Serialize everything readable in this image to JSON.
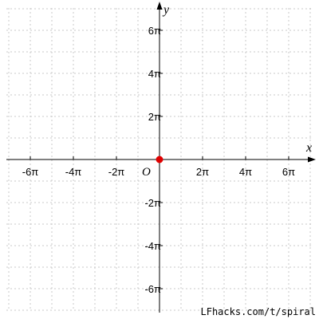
{
  "chart_data": {
    "type": "scatter",
    "xlabel": "x",
    "ylabel": "y",
    "origin_label": "O",
    "xlim_pi": [
      -6.9,
      6.9
    ],
    "ylim_pi": [
      -6.9,
      6.9
    ],
    "grid": true,
    "x_ticks": [
      {
        "value_pi": -6,
        "label": "-6π"
      },
      {
        "value_pi": -4,
        "label": "-4π"
      },
      {
        "value_pi": -2,
        "label": "-2π"
      },
      {
        "value_pi": 2,
        "label": "2π"
      },
      {
        "value_pi": 4,
        "label": "4π"
      },
      {
        "value_pi": 6,
        "label": "6π"
      }
    ],
    "y_ticks": [
      {
        "value_pi": 6,
        "label": "6π"
      },
      {
        "value_pi": 4,
        "label": "4π"
      },
      {
        "value_pi": 2,
        "label": "2π"
      },
      {
        "value_pi": -2,
        "label": "-2π"
      },
      {
        "value_pi": -4,
        "label": "-4π"
      },
      {
        "value_pi": -6,
        "label": "-6π"
      }
    ],
    "points": [
      {
        "x": 0,
        "y": 0,
        "color": "#e00000"
      }
    ]
  },
  "watermark": "LFhacks.com/t/spiral"
}
